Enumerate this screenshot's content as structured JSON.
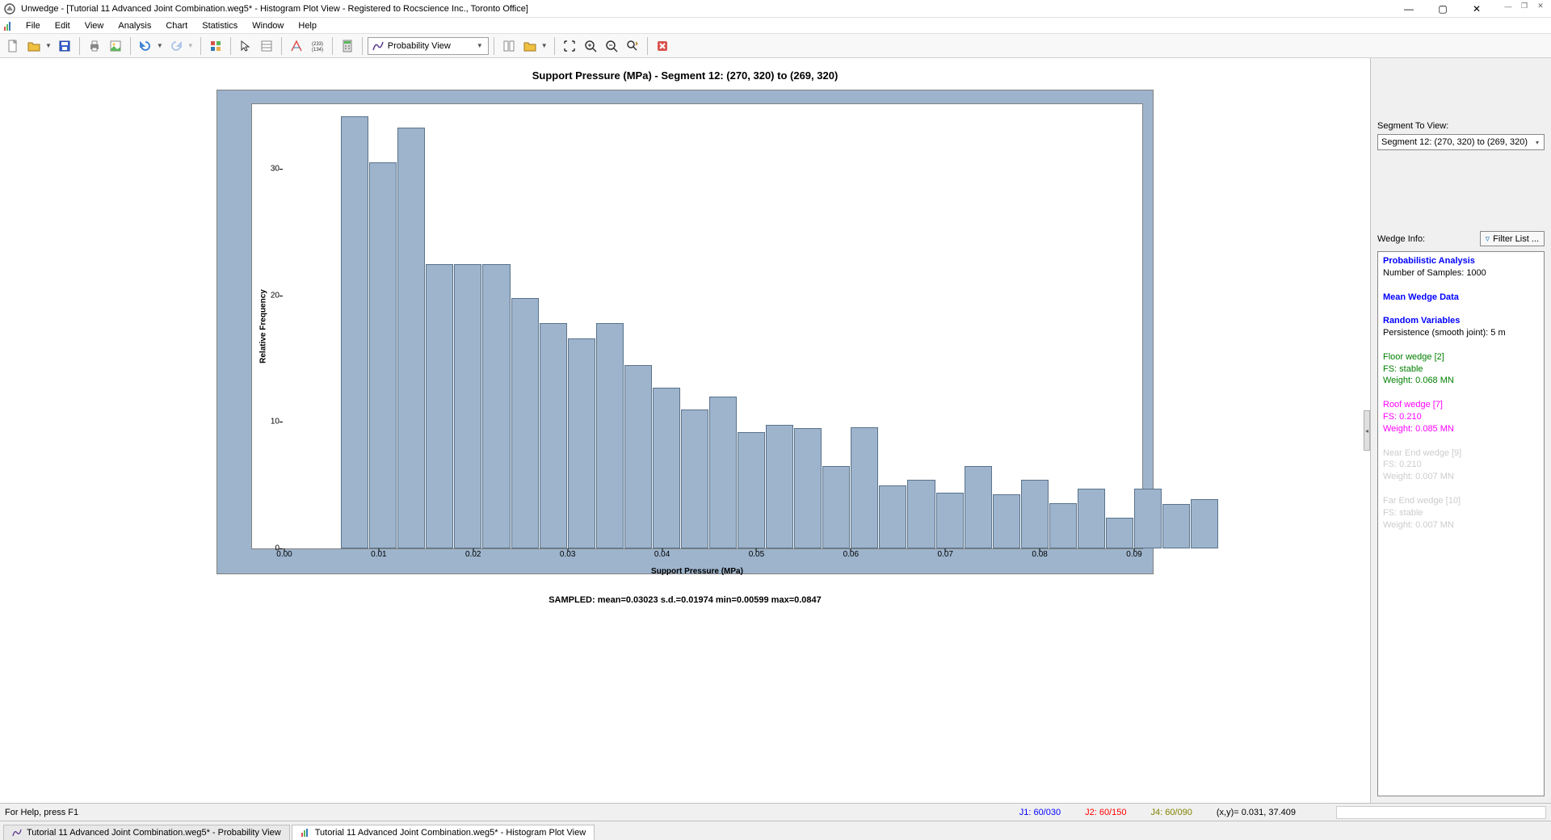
{
  "title": "Unwedge - [Tutorial 11 Advanced Joint Combination.weg5* - Histogram Plot View - Registered to Rocscience Inc., Toronto Office]",
  "menu": [
    "File",
    "Edit",
    "View",
    "Analysis",
    "Chart",
    "Statistics",
    "Window",
    "Help"
  ],
  "prob_view_label": "Probability View",
  "chart": {
    "title": "Support Pressure (MPa) - Segment 12: (270, 320) to (269, 320)",
    "xlabel": "Support Pressure (MPa)",
    "ylabel": "Relative Frequency",
    "bar_color": "#9db4cc",
    "bar_border": "#5a738c",
    "xlim": [
      0.0,
      0.09
    ],
    "ylim": [
      0,
      35
    ],
    "xticks": [
      0.0,
      0.01,
      0.02,
      0.03,
      0.04,
      0.05,
      0.06,
      0.07,
      0.08,
      0.09
    ],
    "yticks": [
      0,
      10,
      20,
      30
    ],
    "data_start": 0.006,
    "bar_width_x": 0.003,
    "values": [
      34.2,
      30.5,
      33.3,
      22.5,
      22.5,
      22.5,
      19.8,
      17.8,
      16.6,
      17.8,
      14.5,
      12.7,
      11.0,
      12.0,
      9.2,
      9.8,
      9.5,
      6.5,
      9.6,
      5.0,
      5.4,
      4.4,
      6.5,
      4.3,
      5.4,
      3.6,
      4.7,
      2.4,
      4.7,
      3.5,
      3.9
    ],
    "stats_line": "SAMPLED: mean=0.03023 s.d.=0.01974 min=0.00599 max=0.0847"
  },
  "side": {
    "segment_label": "Segment To View:",
    "segment_value": "Segment 12: (270, 320) to (269, 320)",
    "wedge_info_label": "Wedge Info:",
    "filter_label": "Filter List ...",
    "info": {
      "h1": "Probabilistic Analysis",
      "samples": "Number of Samples: 1000",
      "h2": "Mean Wedge Data",
      "h3": "Random Variables",
      "persist": "Persistence (smooth joint): 5 m",
      "floor": [
        "Floor wedge [2]",
        "FS: stable",
        "Weight: 0.068 MN"
      ],
      "roof": [
        "Roof wedge [7]",
        "FS: 0.210",
        "Weight: 0.085 MN"
      ],
      "near": [
        "Near End wedge [9]",
        "FS: 0.210",
        "Weight: 0.007 MN"
      ],
      "far": [
        "Far End wedge [10]",
        "FS: stable",
        "Weight: 0.007 MN"
      ]
    }
  },
  "status": {
    "help": "For Help, press F1",
    "j1": "J1: 60/030",
    "j2": "J2: 60/150",
    "j4": "J4: 60/090",
    "coords": "(x,y)= 0.031, 37.409"
  },
  "tabs": {
    "t1": "Tutorial 11 Advanced Joint Combination.weg5* - Probability View",
    "t2": "Tutorial 11 Advanced Joint Combination.weg5* - Histogram Plot View"
  }
}
